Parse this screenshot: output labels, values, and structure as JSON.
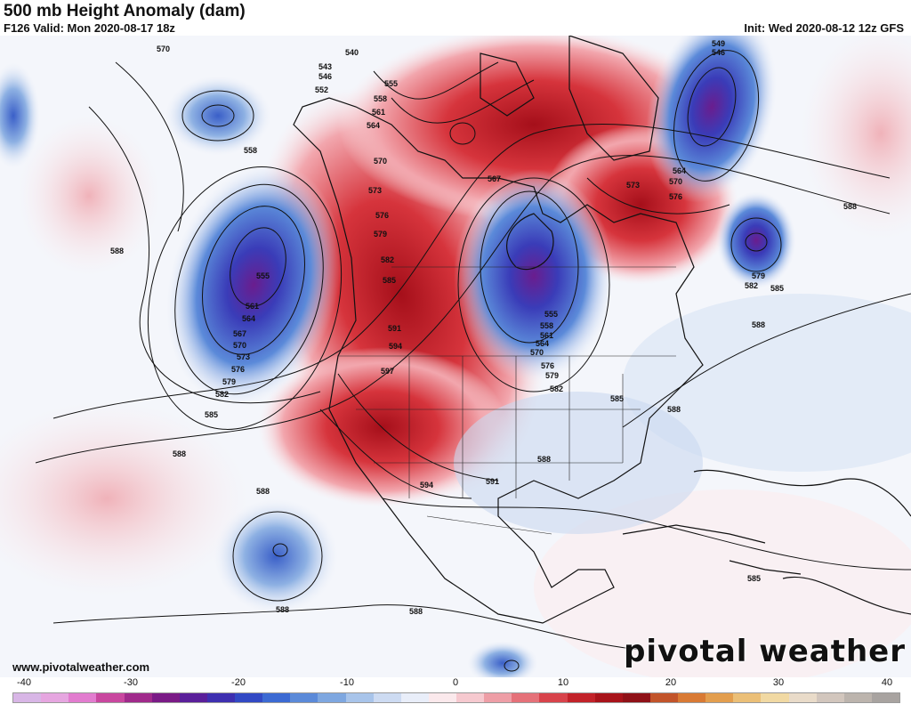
{
  "header": {
    "title": "500 mb Height Anomaly (dam)",
    "valid": "F126 Valid: Mon 2020-08-17 18z",
    "init": "Init: Wed 2020-08-12 12z GFS"
  },
  "footer": {
    "website": "www.pivotalweather.com",
    "brand": "pivotal weather"
  },
  "colorbar": {
    "ticks": [
      "-40",
      "-30",
      "-20",
      "-10",
      "0",
      "10",
      "20",
      "30",
      "40"
    ],
    "colors": [
      "#d8b6e6",
      "#e6a6e0",
      "#e27ccf",
      "#c9479f",
      "#a02a8b",
      "#7a1a86",
      "#5a1f9a",
      "#3e2fb0",
      "#3249c4",
      "#3c6ad3",
      "#5b8ad9",
      "#7ea7e0",
      "#a8c4ea",
      "#cddbf2",
      "#e9eef9",
      "#fbe9ec",
      "#f6c9cf",
      "#ee9ea6",
      "#e57179",
      "#d8434b",
      "#c22229",
      "#a8131a",
      "#8f1117",
      "#c2542a",
      "#d97a34",
      "#e39e4e",
      "#ebbf77",
      "#f1d9a3",
      "#e9dbc9",
      "#d2c6bd",
      "#bcb4ad",
      "#a8a3a0"
    ]
  },
  "contour_labels": [
    "570",
    "540",
    "543",
    "546",
    "552",
    "555",
    "558",
    "561",
    "564",
    "567",
    "549",
    "546",
    "558",
    "570",
    "573",
    "576",
    "579",
    "582",
    "585",
    "588",
    "555",
    "561",
    "564",
    "567",
    "570",
    "573",
    "576",
    "579",
    "582",
    "585",
    "588",
    "591",
    "594",
    "597",
    "555",
    "558",
    "561",
    "564",
    "570",
    "576",
    "579",
    "582",
    "585",
    "588",
    "591",
    "594",
    "564",
    "570",
    "573",
    "576",
    "579",
    "582",
    "585",
    "588",
    "588",
    "588",
    "588",
    "585",
    "588",
    "588"
  ]
}
